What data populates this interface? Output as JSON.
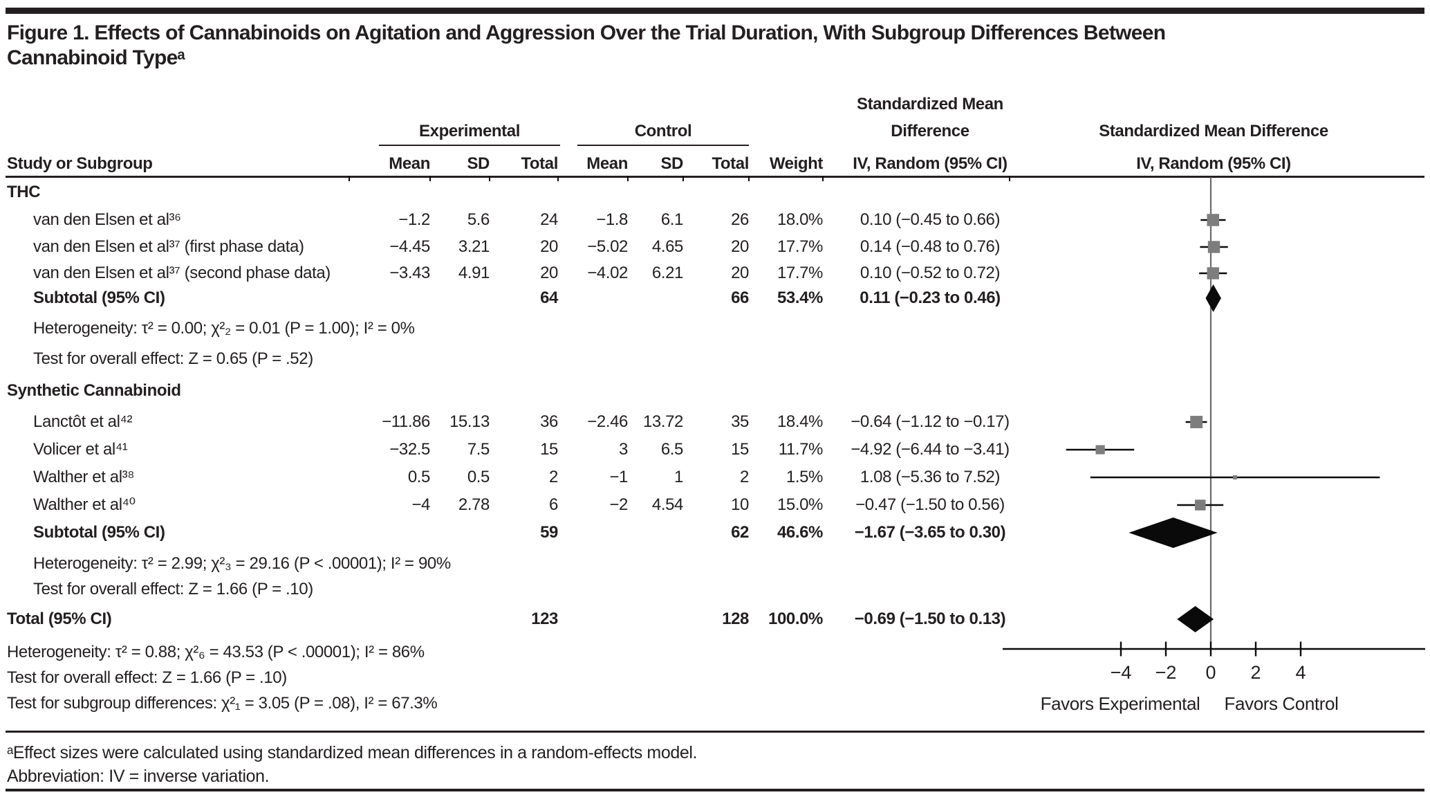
{
  "title": {
    "line1": "Figure 1. Effects of Cannabinoids on Agitation and Aggression Over the Trial Duration, With Subgroup Differences Between",
    "line2": "Cannabinoid Typeᵃ"
  },
  "table_headers": {
    "study": "Study or Subgroup",
    "experimental": "Experimental",
    "control": "Control",
    "mean": "Mean",
    "sd": "SD",
    "total": "Total",
    "weight": "Weight",
    "smd_line1": "Standardized Mean",
    "smd_line2": "Difference",
    "iv_random": "IV, Random (95% CI)",
    "plot_line1": "Standardized Mean Difference",
    "plot_line2": "IV, Random (95% CI)"
  },
  "chart_data": {
    "type": "forest",
    "effect_measure": "Standardized Mean Difference, IV Random (95% CI)",
    "x_axis": {
      "ticks": [
        -4,
        -2,
        0,
        2,
        4
      ],
      "tick_labels": [
        "−4",
        "−2",
        "0",
        "2",
        "4"
      ],
      "range": [
        -9.3,
        9.5
      ],
      "zero_line": 0,
      "favors_left": "Favors Experimental",
      "favors_right": "Favors Control"
    },
    "groups": [
      {
        "label": "THC",
        "studies": [
          {
            "name": "van den Elsen et al³⁶",
            "cells": [
              "−1.2",
              "5.6",
              "24",
              "−1.8",
              "6.1",
              "26",
              "18.0%",
              "0.10 (−0.45 to 0.66)"
            ],
            "smd": 0.1,
            "ci": [
              -0.45,
              0.66
            ],
            "weight": 18.0
          },
          {
            "name": "van den Elsen et al³⁷ (first phase data)",
            "cells": [
              "−4.45",
              "3.21",
              "20",
              "−5.02",
              "4.65",
              "20",
              "17.7%",
              "0.14 (−0.48 to 0.76)"
            ],
            "smd": 0.14,
            "ci": [
              -0.48,
              0.76
            ],
            "weight": 17.7
          },
          {
            "name": "van den Elsen et al³⁷ (second phase data)",
            "cells": [
              "−3.43",
              "4.91",
              "20",
              "−4.02",
              "6.21",
              "20",
              "17.7%",
              "0.10 (−0.52 to 0.72)"
            ],
            "smd": 0.1,
            "ci": [
              -0.52,
              0.72
            ],
            "weight": 17.7
          }
        ],
        "subtotal": {
          "label": "Subtotal (95% CI)",
          "exp_total": "64",
          "ctl_total": "66",
          "weight": "53.4%",
          "smd_text": "0.11 (−0.23 to 0.46)",
          "smd": 0.11,
          "ci": [
            -0.23,
            0.46
          ]
        },
        "heterogeneity": "Heterogeneity: τ² = 0.00; χ²₂ = 0.01 (P = 1.00); I² = 0%",
        "overall_effect": "Test for overall effect: Z = 0.65 (P = .52)"
      },
      {
        "label": "Synthetic Cannabinoid",
        "studies": [
          {
            "name": "Lanctôt et al⁴²",
            "cells": [
              "−11.86",
              "15.13",
              "36",
              "−2.46",
              "13.72",
              "35",
              "18.4%",
              "−0.64 (−1.12 to −0.17)"
            ],
            "smd": -0.64,
            "ci": [
              -1.12,
              -0.17
            ],
            "weight": 18.4
          },
          {
            "name": "Volicer et al⁴¹",
            "cells": [
              "−32.5",
              "7.5",
              "15",
              "3",
              "6.5",
              "15",
              "11.7%",
              "−4.92 (−6.44 to −3.41)"
            ],
            "smd": -4.92,
            "ci": [
              -6.44,
              -3.41
            ],
            "weight": 11.7
          },
          {
            "name": "Walther et al³⁸",
            "cells": [
              "0.5",
              "0.5",
              "2",
              "−1",
              "1",
              "2",
              "1.5%",
              "1.08 (−5.36 to 7.52)"
            ],
            "smd": 1.08,
            "ci": [
              -5.36,
              7.52
            ],
            "weight": 1.5
          },
          {
            "name": "Walther et al⁴⁰",
            "cells": [
              "−4",
              "2.78",
              "6",
              "−2",
              "4.54",
              "10",
              "15.0%",
              "−0.47 (−1.50 to 0.56)"
            ],
            "smd": -0.47,
            "ci": [
              -1.5,
              0.56
            ],
            "weight": 15.0
          }
        ],
        "subtotal": {
          "label": "Subtotal (95% CI)",
          "exp_total": "59",
          "ctl_total": "62",
          "weight": "46.6%",
          "smd_text": "−1.67 (−3.65 to 0.30)",
          "smd": -1.67,
          "ci": [
            -3.65,
            0.3
          ]
        },
        "heterogeneity": "Heterogeneity: τ² = 2.99; χ²₃ = 29.16 (P < .00001); I² = 90%",
        "overall_effect": "Test for overall effect: Z = 1.66 (P = .10)"
      }
    ],
    "total": {
      "label": "Total (95% CI)",
      "exp_total": "123",
      "ctl_total": "128",
      "weight": "100.0%",
      "smd_text": "−0.69 (−1.50 to 0.13)",
      "smd": -0.69,
      "ci": [
        -1.5,
        0.13
      ]
    },
    "total_heterogeneity": "Heterogeneity: τ² = 0.88; χ²₆ = 43.53 (P < .00001); I² = 86%",
    "total_overall_effect": "Test for overall effect: Z = 1.66 (P = .10)",
    "subgroup_differences": "Test for subgroup differences: χ²₁ = 3.05 (P = .08), I² = 67.3%",
    "colors": {
      "text": "#231f20",
      "square": "#7d7d7d",
      "diamond": "#0a0a0a",
      "zero_line": "#6a6a6a"
    }
  },
  "footnote": {
    "line1": "ᵃEffect sizes were calculated using standardized mean differences in a random-effects model.",
    "line2": "Abbreviation: IV = inverse variation."
  }
}
